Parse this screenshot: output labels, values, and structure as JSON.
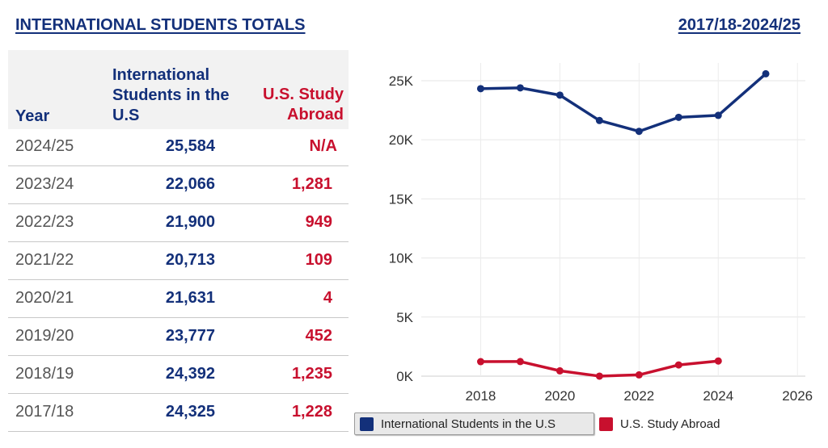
{
  "header": {
    "title": "INTERNATIONAL STUDENTS TOTALS",
    "range": "2017/18-2024/25"
  },
  "table": {
    "headers": {
      "year": "Year",
      "intl": "International Students in the U.S",
      "abroad_line1": "U.S. Study",
      "abroad_line2": "Abroad"
    },
    "rows": [
      {
        "year": "2024/25",
        "intl": "25,584",
        "abroad": "N/A"
      },
      {
        "year": "2023/24",
        "intl": "22,066",
        "abroad": "1,281"
      },
      {
        "year": "2022/23",
        "intl": "21,900",
        "abroad": "949"
      },
      {
        "year": "2021/22",
        "intl": "20,713",
        "abroad": "109"
      },
      {
        "year": "2020/21",
        "intl": "21,631",
        "abroad": "4"
      },
      {
        "year": "2019/20",
        "intl": "23,777",
        "abroad": "452"
      },
      {
        "year": "2018/19",
        "intl": "24,392",
        "abroad": "1,235"
      },
      {
        "year": "2017/18",
        "intl": "24,325",
        "abroad": "1,228"
      }
    ]
  },
  "colors": {
    "navy": "#13307a",
    "red": "#c8102e"
  },
  "chart_data": {
    "type": "line",
    "xlim": [
      2016.5,
      2026.2
    ],
    "ylim": [
      0,
      26500
    ],
    "xticks": [
      2018,
      2020,
      2022,
      2024,
      2026
    ],
    "xtick_labels": [
      "2018",
      "2020",
      "2022",
      "2024",
      "2026"
    ],
    "yticks": [
      0,
      5000,
      10000,
      15000,
      20000,
      25000
    ],
    "ytick_labels": [
      "0K",
      "5K",
      "10K",
      "15K",
      "20K",
      "25K"
    ],
    "grid": true,
    "legend_position": "bottom-left",
    "series": [
      {
        "name": "International Students in the U.S",
        "color": "#13307a",
        "x": [
          2018,
          2019,
          2020,
          2021,
          2022,
          2023,
          2024,
          2025.2
        ],
        "values": [
          24325,
          24392,
          23777,
          21631,
          20713,
          21900,
          22066,
          25584
        ]
      },
      {
        "name": "U.S. Study Abroad",
        "color": "#c8102e",
        "x": [
          2018,
          2019,
          2020,
          2021,
          2022,
          2023,
          2024
        ],
        "values": [
          1228,
          1235,
          452,
          4,
          109,
          949,
          1281
        ]
      }
    ]
  }
}
